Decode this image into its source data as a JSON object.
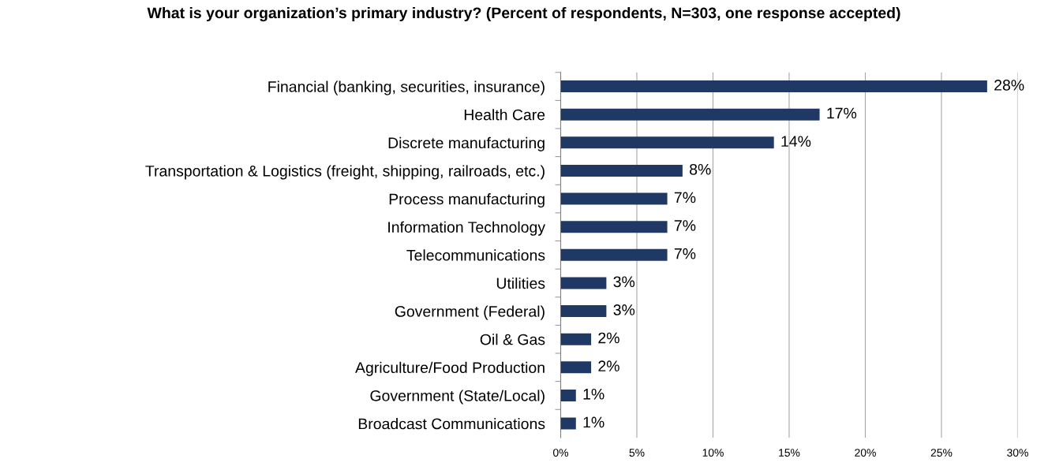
{
  "chart_data": {
    "type": "bar",
    "orientation": "horizontal",
    "title": "What is your organization’s primary industry? (Percent of respondents, N=303, one response accepted)",
    "categories": [
      "Financial (banking, securities, insurance)",
      "Health Care",
      "Discrete manufacturing",
      "Transportation & Logistics (freight, shipping, railroads, etc.)",
      "Process manufacturing",
      "Information Technology",
      "Telecommunications",
      "Utilities",
      "Government (Federal)",
      "Oil & Gas",
      "Agriculture/Food Production",
      "Government (State/Local)",
      "Broadcast Communications"
    ],
    "values": [
      28,
      17,
      14,
      8,
      7,
      7,
      7,
      3,
      3,
      2,
      2,
      1,
      1
    ],
    "value_labels": [
      "28%",
      "17%",
      "14%",
      "8%",
      "7%",
      "7%",
      "7%",
      "3%",
      "3%",
      "2%",
      "2%",
      "1%",
      "1%"
    ],
    "color": "#1f3864",
    "xlim": [
      0,
      30
    ],
    "xticks": [
      {
        "value": 0,
        "label": "0%"
      },
      {
        "value": 5,
        "label": "5%"
      },
      {
        "value": 10,
        "label": "10%"
      },
      {
        "value": 15,
        "label": "15%"
      },
      {
        "value": 20,
        "label": "20%"
      },
      {
        "value": 25,
        "label": "25%"
      },
      {
        "value": 30,
        "label": "30%"
      }
    ],
    "grid": "x"
  }
}
